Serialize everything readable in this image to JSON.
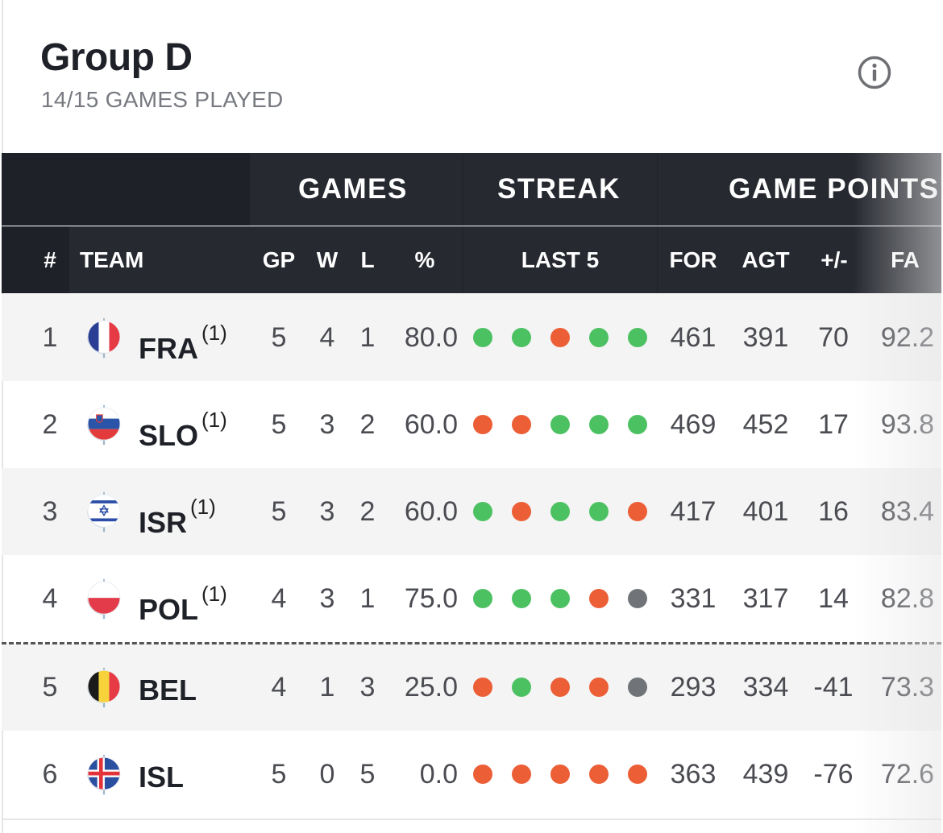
{
  "header": {
    "title": "Group D",
    "subtitle": "14/15 GAMES PLAYED"
  },
  "table": {
    "group_headers": {
      "games": "GAMES",
      "streak": "STREAK",
      "game_points": "GAME POINTS"
    },
    "columns": {
      "rank": "#",
      "team": "TEAM",
      "gp": "GP",
      "w": "W",
      "l": "L",
      "pct": "%",
      "last5": "LAST 5",
      "for": "FOR",
      "agt": "AGT",
      "diff": "+/-",
      "fa": "FA"
    },
    "rows": [
      {
        "rank": "1",
        "team": "FRA",
        "note": "(1)",
        "gp": "5",
        "w": "4",
        "l": "1",
        "pct": "80.0",
        "last5": [
          "W",
          "W",
          "L",
          "W",
          "W"
        ],
        "for": "461",
        "agt": "391",
        "diff": "70",
        "fa": "92.2"
      },
      {
        "rank": "2",
        "team": "SLO",
        "note": "(1)",
        "gp": "5",
        "w": "3",
        "l": "2",
        "pct": "60.0",
        "last5": [
          "L",
          "L",
          "W",
          "W",
          "W"
        ],
        "for": "469",
        "agt": "452",
        "diff": "17",
        "fa": "93.8"
      },
      {
        "rank": "3",
        "team": "ISR",
        "note": "(1)",
        "gp": "5",
        "w": "3",
        "l": "2",
        "pct": "60.0",
        "last5": [
          "W",
          "L",
          "W",
          "W",
          "L"
        ],
        "for": "417",
        "agt": "401",
        "diff": "16",
        "fa": "83.4"
      },
      {
        "rank": "4",
        "team": "POL",
        "note": "(1)",
        "gp": "4",
        "w": "3",
        "l": "1",
        "pct": "75.0",
        "last5": [
          "W",
          "W",
          "W",
          "L",
          "N"
        ],
        "for": "331",
        "agt": "317",
        "diff": "14",
        "fa": "82.8"
      },
      {
        "rank": "5",
        "team": "BEL",
        "note": "",
        "gp": "4",
        "w": "1",
        "l": "3",
        "pct": "25.0",
        "last5": [
          "L",
          "W",
          "L",
          "L",
          "N"
        ],
        "for": "293",
        "agt": "334",
        "diff": "-41",
        "fa": "73.3"
      },
      {
        "rank": "6",
        "team": "ISL",
        "note": "",
        "gp": "5",
        "w": "0",
        "l": "5",
        "pct": "0.0",
        "last5": [
          "L",
          "L",
          "L",
          "L",
          "L"
        ],
        "for": "363",
        "agt": "439",
        "diff": "-76",
        "fa": "72.6"
      }
    ]
  },
  "colors": {
    "win": "#4cc162",
    "loss": "#ec5e36",
    "none": "#707378",
    "header_bg": "#1f2128"
  },
  "icons": {
    "info": "info-icon"
  }
}
